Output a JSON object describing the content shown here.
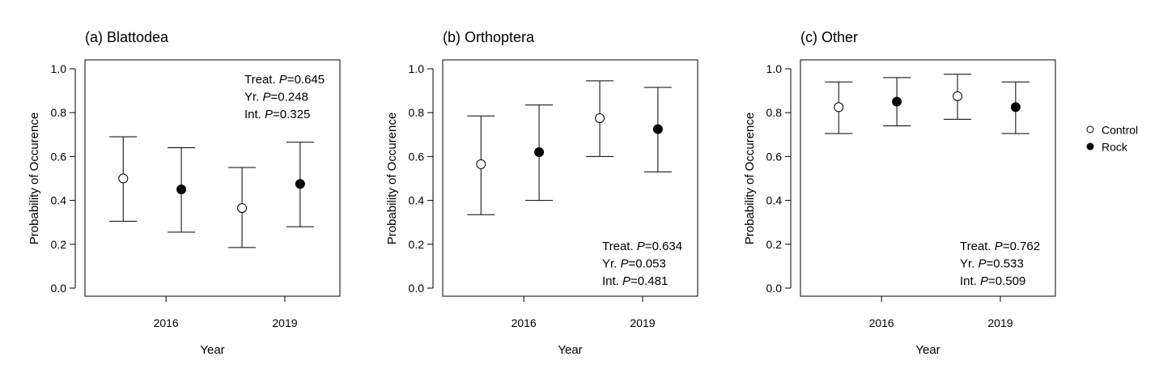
{
  "chart_data": [
    {
      "type": "scatter",
      "title": "(a) Blattodea",
      "xlabel": "Year",
      "ylabel": "Probability of Occurence",
      "ylim": [
        0.0,
        1.0
      ],
      "yticks": [
        "0.0",
        "0.2",
        "0.4",
        "0.6",
        "0.8",
        "1.0"
      ],
      "categories": [
        "2016",
        "2019"
      ],
      "grid": false,
      "series": [
        {
          "name": "Control",
          "values": [
            0.5,
            0.365
          ],
          "lower": [
            0.305,
            0.185
          ],
          "upper": [
            0.69,
            0.55
          ]
        },
        {
          "name": "Rock",
          "values": [
            0.45,
            0.475
          ],
          "lower": [
            0.255,
            0.28
          ],
          "upper": [
            0.64,
            0.665
          ]
        }
      ],
      "annotation": {
        "position": "top-right",
        "lines": [
          {
            "label": "Treat. ",
            "p": "P",
            "value": "=0.645"
          },
          {
            "label": "Yr. ",
            "p": "P",
            "value": "=0.248"
          },
          {
            "label": "Int. ",
            "p": "P",
            "value": "=0.325"
          }
        ]
      }
    },
    {
      "type": "scatter",
      "title": "(b) Orthoptera",
      "xlabel": "Year",
      "ylabel": "Probability of Occurence",
      "ylim": [
        0.0,
        1.0
      ],
      "yticks": [
        "0.0",
        "0.2",
        "0.4",
        "0.6",
        "0.8",
        "1.0"
      ],
      "categories": [
        "2016",
        "2019"
      ],
      "grid": false,
      "series": [
        {
          "name": "Control",
          "values": [
            0.565,
            0.775
          ],
          "lower": [
            0.335,
            0.6
          ],
          "upper": [
            0.785,
            0.945
          ]
        },
        {
          "name": "Rock",
          "values": [
            0.62,
            0.725
          ],
          "lower": [
            0.4,
            0.53
          ],
          "upper": [
            0.835,
            0.915
          ]
        }
      ],
      "annotation": {
        "position": "bottom-right",
        "lines": [
          {
            "label": "Treat. ",
            "p": "P",
            "value": "=0.634"
          },
          {
            "label": "Yr. ",
            "p": "P",
            "value": "=0.053"
          },
          {
            "label": "Int. ",
            "p": "P",
            "value": "=0.481"
          }
        ]
      }
    },
    {
      "type": "scatter",
      "title": "(c) Other",
      "xlabel": "Year",
      "ylabel": "Probability of Occurence",
      "ylim": [
        0.0,
        1.0
      ],
      "yticks": [
        "0.0",
        "0.2",
        "0.4",
        "0.6",
        "0.8",
        "1.0"
      ],
      "categories": [
        "2016",
        "2019"
      ],
      "grid": false,
      "series": [
        {
          "name": "Control",
          "values": [
            0.825,
            0.875
          ],
          "lower": [
            0.705,
            0.77
          ],
          "upper": [
            0.94,
            0.975
          ]
        },
        {
          "name": "Rock",
          "values": [
            0.85,
            0.825
          ],
          "lower": [
            0.74,
            0.705
          ],
          "upper": [
            0.96,
            0.94
          ]
        }
      ],
      "annotation": {
        "position": "bottom-right",
        "lines": [
          {
            "label": "Treat. ",
            "p": "P",
            "value": "=0.762"
          },
          {
            "label": "Yr. ",
            "p": "P",
            "value": "=0.533"
          },
          {
            "label": "Int. ",
            "p": "P",
            "value": "=0.509"
          }
        ]
      }
    }
  ],
  "legend": {
    "position": "right",
    "items": [
      {
        "label": "Control",
        "marker": "open-circle"
      },
      {
        "label": "Rock",
        "marker": "filled-circle"
      }
    ]
  }
}
